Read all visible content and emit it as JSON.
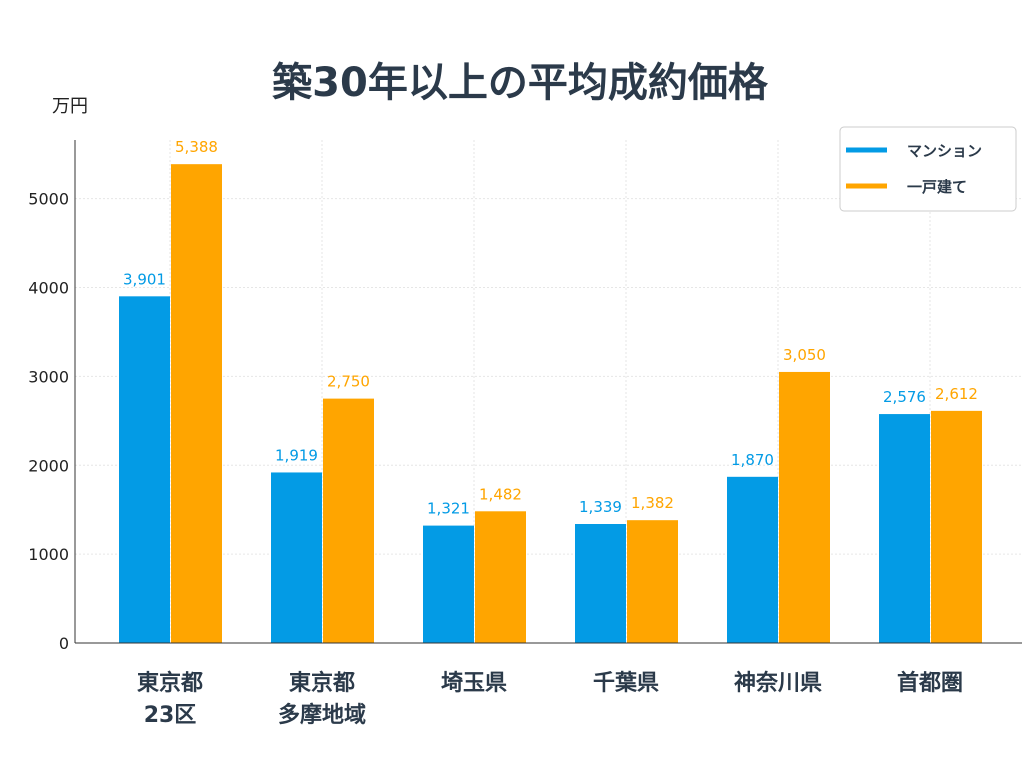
{
  "chart_data": {
    "type": "bar",
    "title": "築30年以上の平均成約価格",
    "ylabel": "万円",
    "xlabel": "",
    "categories": [
      [
        "東京都",
        "23区"
      ],
      [
        "東京都",
        "多摩地域"
      ],
      [
        "埼玉県"
      ],
      [
        "千葉県"
      ],
      [
        "神奈川県"
      ],
      [
        "首都圏"
      ]
    ],
    "series": [
      {
        "name": "マンション",
        "color": "#039be5",
        "values": [
          3901,
          1919,
          1321,
          1339,
          1870,
          2576
        ],
        "labels": [
          "3,901",
          "1,919",
          "1,321",
          "1,339",
          "1,870",
          "2,576"
        ]
      },
      {
        "name": "一戸建て",
        "color": "#ffa500",
        "values": [
          5388,
          2750,
          1482,
          1382,
          3050,
          2612
        ],
        "labels": [
          "5,388",
          "2,750",
          "1,482",
          "1,382",
          "3,050",
          "2,612"
        ]
      }
    ],
    "ylim": [
      0,
      5660
    ],
    "yticks": [
      0,
      1000,
      2000,
      3000,
      4000,
      5000
    ],
    "grid": true,
    "legend_position": "top-right"
  }
}
